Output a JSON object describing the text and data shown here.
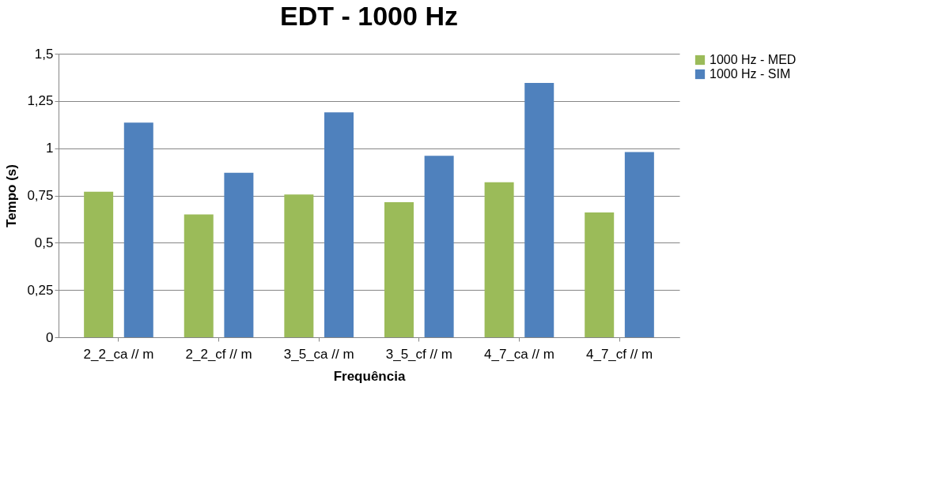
{
  "chart_data": {
    "type": "bar",
    "title": "EDT - 1000 Hz",
    "xlabel": "Frequência",
    "ylabel": "Tempo (s)",
    "categories": [
      "2_2_ca // m",
      "2_2_cf // m",
      "3_5_ca // m",
      "3_5_cf // m",
      "4_7_ca // m",
      "4_7_cf // m"
    ],
    "series": [
      {
        "name": "1000 Hz - MED",
        "color": "#9bbb59",
        "values": [
          0.77,
          0.65,
          0.755,
          0.715,
          0.82,
          0.66
        ]
      },
      {
        "name": "1000 Hz - SIM",
        "color": "#4f81bd",
        "values": [
          1.135,
          0.87,
          1.19,
          0.96,
          1.345,
          0.98
        ]
      }
    ],
    "ylim": [
      0,
      1.5
    ],
    "yticks": [
      {
        "value": 0,
        "label": "0"
      },
      {
        "value": 0.25,
        "label": "0,25"
      },
      {
        "value": 0.5,
        "label": "0,5"
      },
      {
        "value": 0.75,
        "label": "0,75"
      },
      {
        "value": 1,
        "label": "1"
      },
      {
        "value": 1.25,
        "label": "1,25"
      },
      {
        "value": 1.5,
        "label": "1,5"
      }
    ],
    "grid": "y",
    "legend": "right"
  }
}
